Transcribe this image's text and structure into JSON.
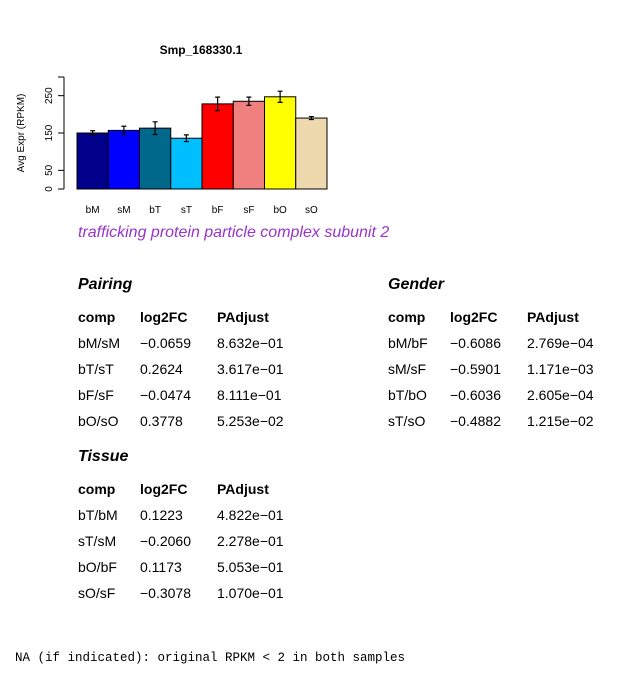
{
  "chart_data": {
    "type": "bar",
    "title": "Smp_168330.1",
    "ylabel": "Avg Expr (RPKM)",
    "xlabel": "",
    "categories": [
      "bM",
      "sM",
      "bT",
      "sT",
      "bF",
      "sF",
      "bO",
      "sO"
    ],
    "values": [
      150,
      157,
      163,
      136,
      228,
      235,
      247,
      190
    ],
    "errors": [
      6,
      11,
      17,
      9,
      18,
      11,
      15,
      4
    ],
    "colors": [
      "#00008b",
      "#0000ff",
      "#00688b",
      "#00bfff",
      "#ff0000",
      "#f08080",
      "#ffff00",
      "#eed8ae"
    ],
    "yticks": [
      0,
      50,
      150,
      250
    ],
    "ylim": [
      0,
      300
    ],
    "grid": false
  },
  "subtitle": "trafficking protein particle complex subunit 2",
  "tables": {
    "pairing": {
      "title": "Pairing",
      "header": [
        "comp",
        "log2FC",
        "PAdjust"
      ],
      "rows": [
        [
          "bM/sM",
          "−0.0659",
          "8.632e−01"
        ],
        [
          "bT/sT",
          "0.2624",
          "3.617e−01"
        ],
        [
          "bF/sF",
          "−0.0474",
          "8.111e−01"
        ],
        [
          "bO/sO",
          "0.3778",
          "5.253e−02"
        ]
      ]
    },
    "gender": {
      "title": "Gender",
      "header": [
        "comp",
        "log2FC",
        "PAdjust"
      ],
      "rows": [
        [
          "bM/bF",
          "−0.6086",
          "2.769e−04"
        ],
        [
          "sM/sF",
          "−0.5901",
          "1.171e−03"
        ],
        [
          "bT/bO",
          "−0.6036",
          "2.605e−04"
        ],
        [
          "sT/sO",
          "−0.4882",
          "1.215e−02"
        ]
      ]
    },
    "tissue": {
      "title": "Tissue",
      "header": [
        "comp",
        "log2FC",
        "PAdjust"
      ],
      "rows": [
        [
          "bT/bM",
          "0.1223",
          "4.822e−01"
        ],
        [
          "sT/sM",
          "−0.2060",
          "2.278e−01"
        ],
        [
          "bO/bF",
          "0.1173",
          "5.053e−01"
        ],
        [
          "sO/sF",
          "−0.3078",
          "1.070e−01"
        ]
      ]
    }
  },
  "footnote": "NA (if indicated): original RPKM < 2 in both samples"
}
